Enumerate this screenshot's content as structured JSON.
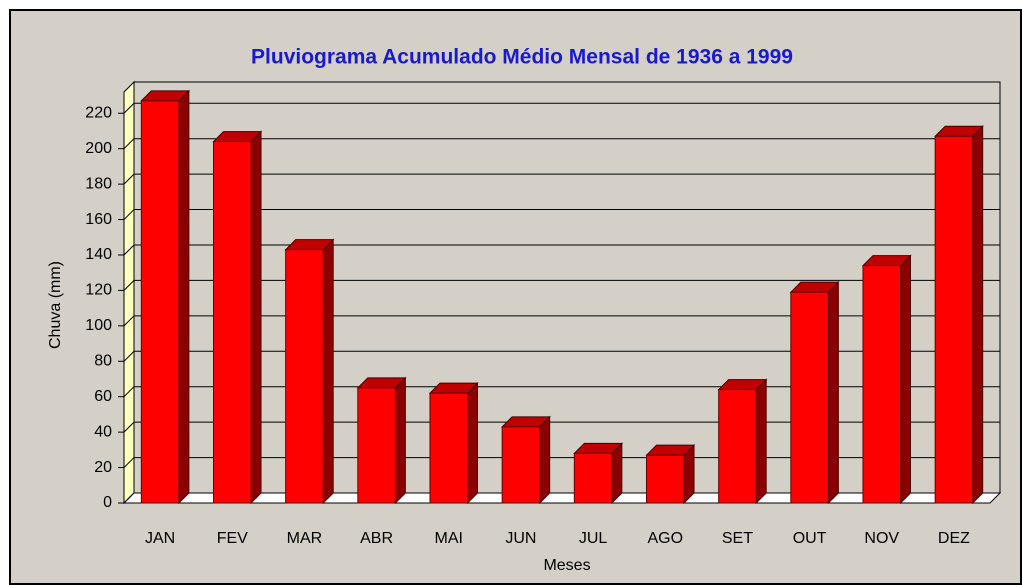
{
  "chart_data": {
    "type": "bar3d",
    "title": "Pluviograma Acumulado Médio Mensal de 1936 a 1999",
    "x_label": "Meses",
    "y_label": "Chuva (mm)",
    "categories": [
      "JAN",
      "FEV",
      "MAR",
      "ABR",
      "MAI",
      "JUN",
      "JUL",
      "AGO",
      "SET",
      "OUT",
      "NOV",
      "DEZ"
    ],
    "values": [
      227,
      204,
      143,
      65,
      62,
      43,
      28,
      27,
      64,
      119,
      134,
      207
    ],
    "color": "#ff0000",
    "ylim": [
      0,
      232
    ],
    "yticks": [
      0,
      20,
      40,
      60,
      80,
      100,
      120,
      140,
      160,
      180,
      200,
      220
    ],
    "grid": true
  }
}
